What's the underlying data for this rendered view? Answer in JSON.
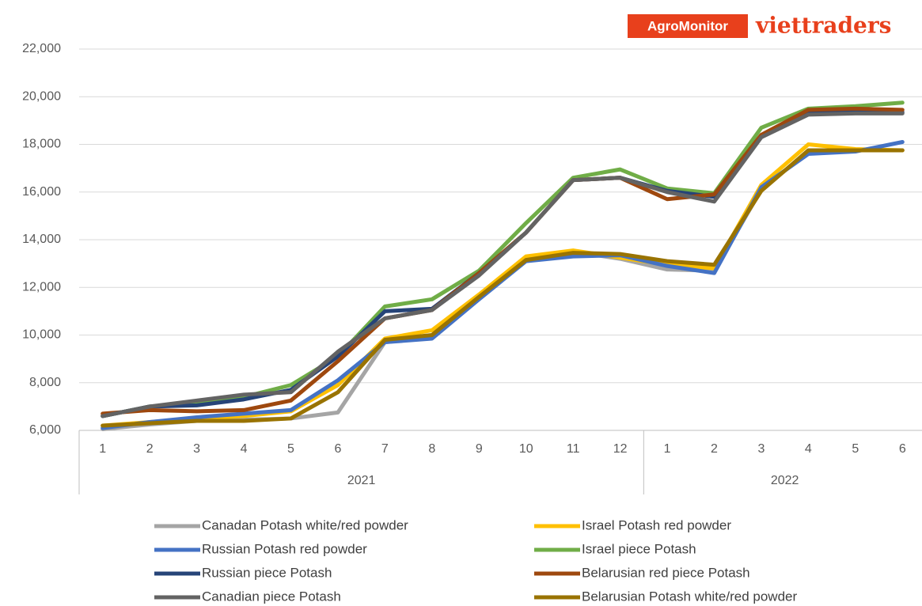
{
  "logo": [
    "AgroMonitor",
    "viettraders"
  ],
  "chart_data": {
    "type": "line",
    "categories": [
      "1",
      "2",
      "3",
      "4",
      "5",
      "6",
      "7",
      "8",
      "9",
      "10",
      "11",
      "12",
      "1",
      "2",
      "3",
      "4",
      "5",
      "6"
    ],
    "groups": [
      {
        "label": "2021",
        "span": 12
      },
      {
        "label": "2022",
        "span": 6
      }
    ],
    "ylim": [
      6000,
      22000
    ],
    "yticks": [
      {
        "value": 6000,
        "label": "6,000"
      },
      {
        "value": 8000,
        "label": "8,000"
      },
      {
        "value": 10000,
        "label": "10,000"
      },
      {
        "value": 12000,
        "label": "12,000"
      },
      {
        "value": 14000,
        "label": "14,000"
      },
      {
        "value": 16000,
        "label": "16,000"
      },
      {
        "value": 18000,
        "label": "18,000"
      },
      {
        "value": 20000,
        "label": "20,000"
      },
      {
        "value": 22000,
        "label": "22,000"
      }
    ],
    "grid": true,
    "legend": "bottom",
    "series": [
      {
        "name": "Canadan Potash white/red powder",
        "color": "#a5a5a5",
        "values": [
          6050,
          6250,
          6400,
          6450,
          6500,
          6750,
          9700,
          9900,
          11600,
          13200,
          13500,
          13200,
          12750,
          12700,
          16100,
          17700,
          17750,
          17750
        ]
      },
      {
        "name": "Israel Potash red powder",
        "color": "#ffc000",
        "values": [
          6200,
          6350,
          6500,
          6600,
          6800,
          7900,
          9850,
          10200,
          11700,
          13300,
          13550,
          13250,
          12950,
          12800,
          16300,
          18000,
          17800,
          17750
        ]
      },
      {
        "name": "Russian Potash red powder",
        "color": "#4472c4",
        "values": [
          6100,
          6350,
          6550,
          6700,
          6850,
          8100,
          9700,
          9850,
          11500,
          13100,
          13300,
          13350,
          12900,
          12600,
          16200,
          17600,
          17700,
          18100
        ]
      },
      {
        "name": "Israel piece Potash",
        "color": "#70ad47",
        "values": [
          6600,
          7000,
          7100,
          7400,
          7900,
          9100,
          11200,
          11500,
          12700,
          14700,
          16600,
          16950,
          16150,
          15950,
          18700,
          19500,
          19600,
          19750
        ]
      },
      {
        "name": "Russian piece Potash",
        "color": "#264478",
        "values": [
          6600,
          7000,
          7050,
          7300,
          7700,
          9100,
          11000,
          11100,
          12600,
          14300,
          16500,
          16600,
          16050,
          15800,
          18350,
          19300,
          19350,
          19350
        ]
      },
      {
        "name": "Belarusian red piece Potash",
        "color": "#9e480e",
        "values": [
          6700,
          6850,
          6800,
          6850,
          7250,
          8900,
          10700,
          11050,
          12600,
          14300,
          16500,
          16600,
          15700,
          15900,
          18400,
          19450,
          19500,
          19450
        ]
      },
      {
        "name": "Canadian piece Potash",
        "color": "#636363",
        "values": [
          6600,
          7000,
          7250,
          7500,
          7600,
          9300,
          10700,
          11050,
          12500,
          14300,
          16500,
          16600,
          16000,
          15600,
          18300,
          19250,
          19300,
          19300
        ]
      },
      {
        "name": "Belarusian Potash white/red powder",
        "color": "#997300",
        "values": [
          6200,
          6300,
          6400,
          6400,
          6500,
          7600,
          9800,
          10000,
          11600,
          13150,
          13450,
          13400,
          13100,
          12950,
          16050,
          17750,
          17750,
          17750
        ]
      }
    ]
  }
}
